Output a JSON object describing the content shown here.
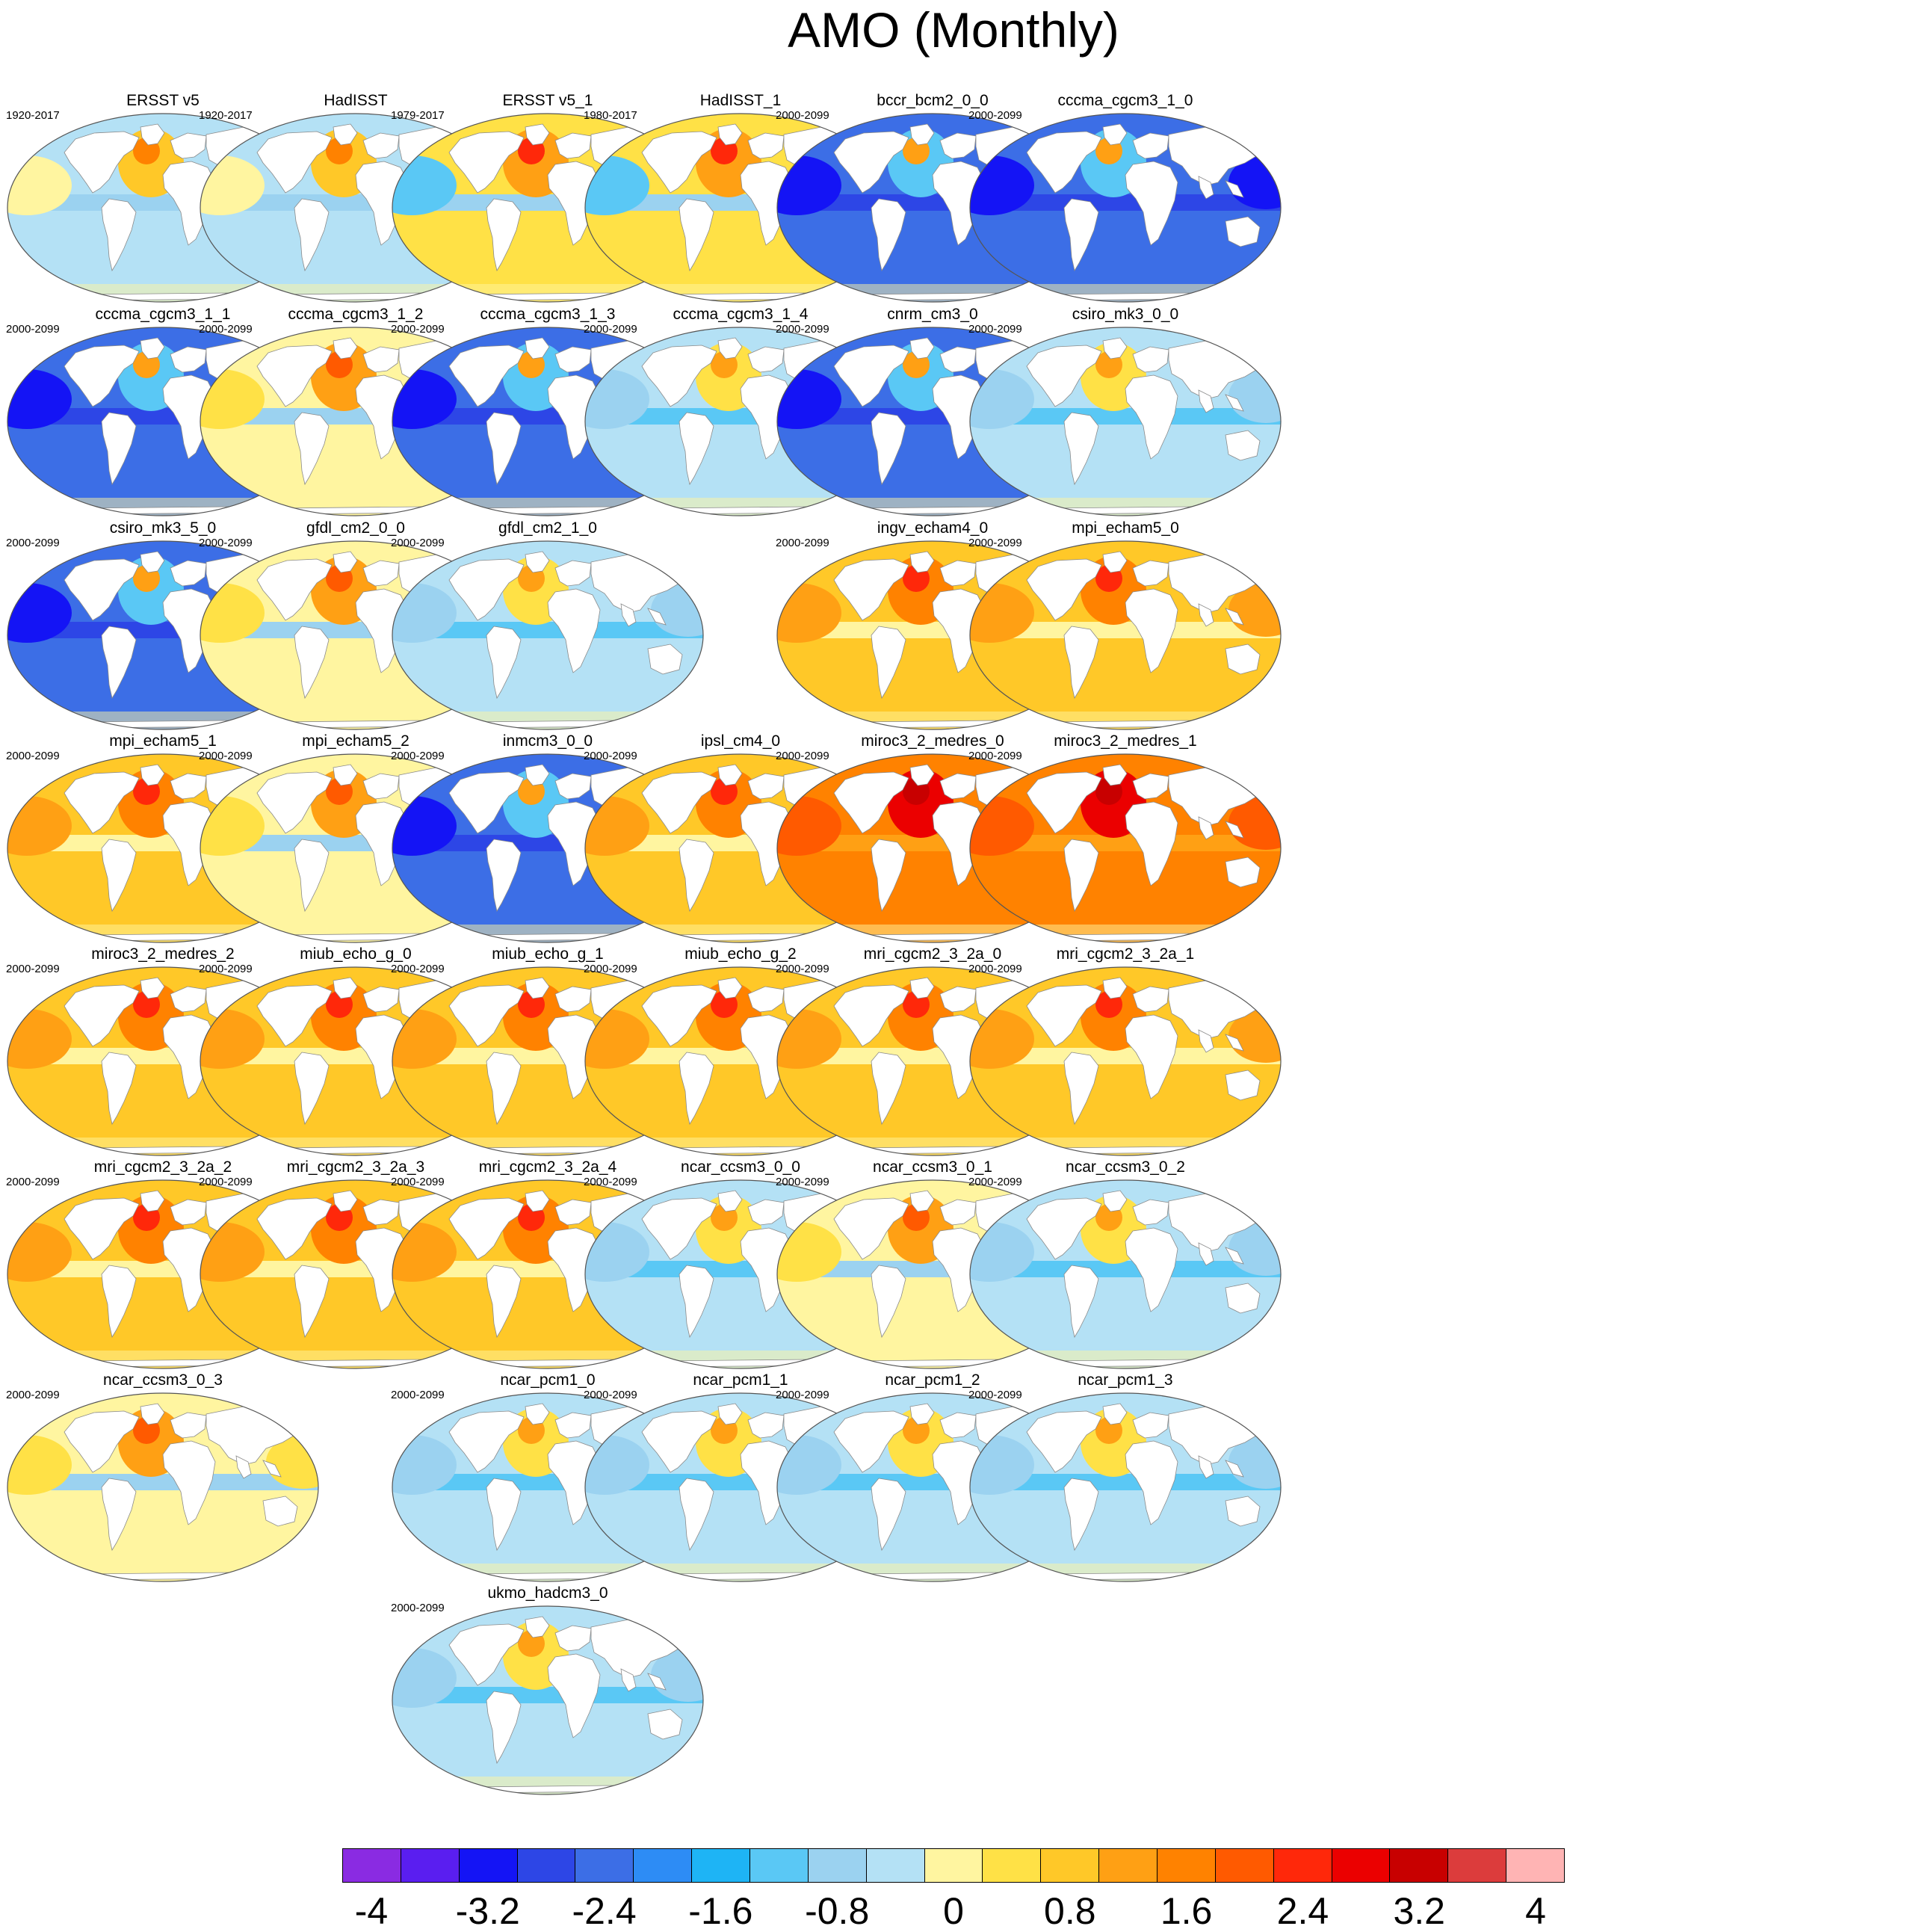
{
  "title": "AMO (Monthly)",
  "palette": [
    "#8a2be2",
    "#5a1ef0",
    "#1414f5",
    "#2d46e6",
    "#3c6ee6",
    "#2d8cf5",
    "#1eb4f5",
    "#5ac8f5",
    "#9bd2f0",
    "#b4e1f5",
    "#fff5a0",
    "#ffe146",
    "#ffc828",
    "#ffa014",
    "#ff8200",
    "#ff5a00",
    "#ff280a",
    "#eb0000",
    "#c80000",
    "#dc3c3c",
    "#ffb4b4"
  ],
  "colorbar_labels": [
    "-4",
    "-3.2",
    "-2.4",
    "-1.6",
    "-0.8",
    "0",
    "0.8",
    "1.6",
    "2.4",
    "3.2",
    "4"
  ],
  "panels": [
    {
      "title": "ERSST v5",
      "period": "1920-2017",
      "row": 0,
      "col": 0,
      "style": "obs"
    },
    {
      "title": "HadISST",
      "period": "1920-2017",
      "row": 0,
      "col": 1,
      "style": "obs"
    },
    {
      "title": "ERSST v5_1",
      "period": "1979-2017",
      "row": 0,
      "col": 2,
      "style": "obswarm"
    },
    {
      "title": "HadISST_1",
      "period": "1980-2017",
      "row": 0,
      "col": 3,
      "style": "obswarm"
    },
    {
      "title": "bccr_bcm2_0_0",
      "period": "2000-2099",
      "row": 0,
      "col": 4,
      "style": "cold"
    },
    {
      "title": "cccma_cgcm3_1_0",
      "period": "2000-2099",
      "row": 0,
      "col": 5,
      "style": "cold"
    },
    {
      "title": "cccma_cgcm3_1_1",
      "period": "2000-2099",
      "row": 1,
      "col": 0,
      "style": "cold"
    },
    {
      "title": "cccma_cgcm3_1_2",
      "period": "2000-2099",
      "row": 1,
      "col": 1,
      "style": "mild"
    },
    {
      "title": "cccma_cgcm3_1_3",
      "period": "2000-2099",
      "row": 1,
      "col": 2,
      "style": "cold"
    },
    {
      "title": "cccma_cgcm3_1_4",
      "period": "2000-2099",
      "row": 1,
      "col": 3,
      "style": "coolmild"
    },
    {
      "title": "cnrm_cm3_0",
      "period": "2000-2099",
      "row": 1,
      "col": 4,
      "style": "cold"
    },
    {
      "title": "csiro_mk3_0_0",
      "period": "2000-2099",
      "row": 1,
      "col": 5,
      "style": "coolmild"
    },
    {
      "title": "csiro_mk3_5_0",
      "period": "2000-2099",
      "row": 2,
      "col": 0,
      "style": "cold"
    },
    {
      "title": "gfdl_cm2_0_0",
      "period": "2000-2099",
      "row": 2,
      "col": 1,
      "style": "mild"
    },
    {
      "title": "gfdl_cm2_1_0",
      "period": "2000-2099",
      "row": 2,
      "col": 2,
      "style": "coolmild"
    },
    {
      "title": "ingv_echam4_0",
      "period": "2000-2099",
      "row": 2,
      "col": 4,
      "style": "warm"
    },
    {
      "title": "mpi_echam5_0",
      "period": "2000-2099",
      "row": 2,
      "col": 5,
      "style": "warm"
    },
    {
      "title": "mpi_echam5_1",
      "period": "2000-2099",
      "row": 3,
      "col": 0,
      "style": "warm"
    },
    {
      "title": "mpi_echam5_2",
      "period": "2000-2099",
      "row": 3,
      "col": 1,
      "style": "mild"
    },
    {
      "title": "inmcm3_0_0",
      "period": "2000-2099",
      "row": 3,
      "col": 2,
      "style": "cold"
    },
    {
      "title": "ipsl_cm4_0",
      "period": "2000-2099",
      "row": 3,
      "col": 3,
      "style": "warm"
    },
    {
      "title": "miroc3_2_medres_0",
      "period": "2000-2099",
      "row": 3,
      "col": 4,
      "style": "hot"
    },
    {
      "title": "miroc3_2_medres_1",
      "period": "2000-2099",
      "row": 3,
      "col": 5,
      "style": "hot"
    },
    {
      "title": "miroc3_2_medres_2",
      "period": "2000-2099",
      "row": 4,
      "col": 0,
      "style": "warm"
    },
    {
      "title": "miub_echo_g_0",
      "period": "2000-2099",
      "row": 4,
      "col": 1,
      "style": "warm"
    },
    {
      "title": "miub_echo_g_1",
      "period": "2000-2099",
      "row": 4,
      "col": 2,
      "style": "warm"
    },
    {
      "title": "miub_echo_g_2",
      "period": "2000-2099",
      "row": 4,
      "col": 3,
      "style": "warm"
    },
    {
      "title": "mri_cgcm2_3_2a_0",
      "period": "2000-2099",
      "row": 4,
      "col": 4,
      "style": "warm"
    },
    {
      "title": "mri_cgcm2_3_2a_1",
      "period": "2000-2099",
      "row": 4,
      "col": 5,
      "style": "warm"
    },
    {
      "title": "mri_cgcm2_3_2a_2",
      "period": "2000-2099",
      "row": 5,
      "col": 0,
      "style": "warm"
    },
    {
      "title": "mri_cgcm2_3_2a_3",
      "period": "2000-2099",
      "row": 5,
      "col": 1,
      "style": "warm"
    },
    {
      "title": "mri_cgcm2_3_2a_4",
      "period": "2000-2099",
      "row": 5,
      "col": 2,
      "style": "warm"
    },
    {
      "title": "ncar_ccsm3_0_0",
      "period": "2000-2099",
      "row": 5,
      "col": 3,
      "style": "coolmild"
    },
    {
      "title": "ncar_ccsm3_0_1",
      "period": "2000-2099",
      "row": 5,
      "col": 4,
      "style": "mild"
    },
    {
      "title": "ncar_ccsm3_0_2",
      "period": "2000-2099",
      "row": 5,
      "col": 5,
      "style": "coolmild"
    },
    {
      "title": "ncar_ccsm3_0_3",
      "period": "2000-2099",
      "row": 6,
      "col": 0,
      "style": "mild"
    },
    {
      "title": "ncar_pcm1_0",
      "period": "2000-2099",
      "row": 6,
      "col": 2,
      "style": "coolmild"
    },
    {
      "title": "ncar_pcm1_1",
      "period": "2000-2099",
      "row": 6,
      "col": 3,
      "style": "coolmild"
    },
    {
      "title": "ncar_pcm1_2",
      "period": "2000-2099",
      "row": 6,
      "col": 4,
      "style": "coolmild"
    },
    {
      "title": "ncar_pcm1_3",
      "period": "2000-2099",
      "row": 6,
      "col": 5,
      "style": "coolmild"
    },
    {
      "title": "ukmo_hadcm3_0",
      "period": "2000-2099",
      "row": 7,
      "col": 2,
      "style": "coolmild"
    }
  ],
  "styles": {
    "obs": {
      "ocean": "#b4e1f5",
      "band": "#9bd2f0",
      "atlantic": "#ffc828",
      "core": "#ff8200",
      "pacific": "#fff5a0"
    },
    "obswarm": {
      "ocean": "#ffe146",
      "band": "#9bd2f0",
      "atlantic": "#ffa014",
      "core": "#ff280a",
      "pacific": "#5ac8f5"
    },
    "cold": {
      "ocean": "#3c6ee6",
      "band": "#2d46e6",
      "atlantic": "#5ac8f5",
      "core": "#ffa014",
      "pacific": "#1414f5"
    },
    "coolmild": {
      "ocean": "#b4e1f5",
      "band": "#5ac8f5",
      "atlantic": "#ffe146",
      "core": "#ffa014",
      "pacific": "#9bd2f0"
    },
    "mild": {
      "ocean": "#fff5a0",
      "band": "#9bd2f0",
      "atlantic": "#ffa014",
      "core": "#ff5a00",
      "pacific": "#ffe146"
    },
    "warm": {
      "ocean": "#ffc828",
      "band": "#fff5a0",
      "atlantic": "#ff8200",
      "core": "#ff280a",
      "pacific": "#ffa014"
    },
    "hot": {
      "ocean": "#ff8200",
      "band": "#ffa014",
      "atlantic": "#eb0000",
      "core": "#c80000",
      "pacific": "#ff5a00"
    }
  }
}
